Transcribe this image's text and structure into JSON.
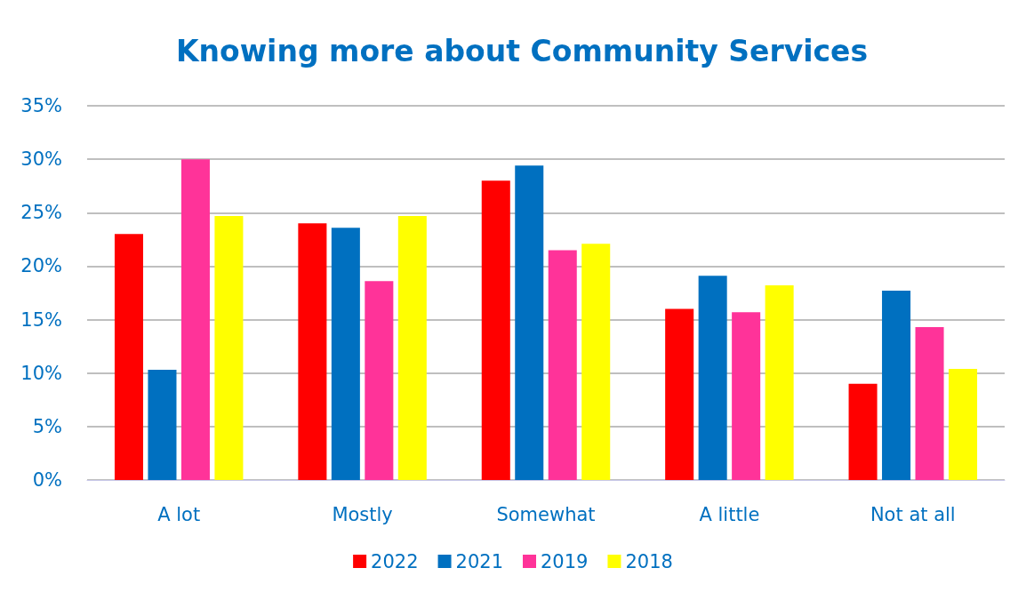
{
  "chart_data": {
    "type": "bar",
    "title": "Knowing more about Community Services",
    "categories": [
      "A lot",
      "Mostly",
      "Somewhat",
      "A little",
      "Not at all"
    ],
    "series": [
      {
        "name": "2022",
        "color": "#ff0000",
        "values": [
          23.0,
          24.0,
          28.0,
          16.0,
          9.0
        ]
      },
      {
        "name": "2021",
        "color": "#0070c0",
        "values": [
          10.3,
          23.6,
          29.4,
          19.1,
          17.7
        ]
      },
      {
        "name": "2019",
        "color": "#ff3399",
        "values": [
          30.0,
          18.6,
          21.5,
          15.7,
          14.3
        ]
      },
      {
        "name": "2018",
        "color": "#ffff00",
        "values": [
          24.7,
          24.7,
          22.1,
          18.2,
          10.4
        ]
      }
    ],
    "ylim": [
      0,
      35
    ],
    "yticks": [
      {
        "value": 0,
        "label": "0%"
      },
      {
        "value": 5,
        "label": "5%"
      },
      {
        "value": 10,
        "label": "10%"
      },
      {
        "value": 15,
        "label": "15%"
      },
      {
        "value": 20,
        "label": "20%"
      },
      {
        "value": 25,
        "label": "25%"
      },
      {
        "value": 30,
        "label": "30%"
      },
      {
        "value": 35,
        "label": "35%"
      }
    ],
    "grid": "y",
    "legend": "bottom"
  }
}
